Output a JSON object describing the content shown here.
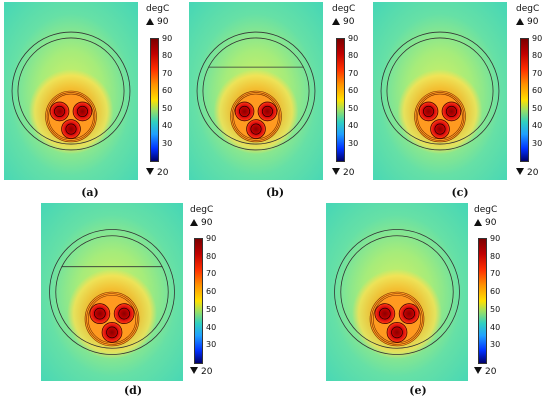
{
  "panels": [
    {
      "caption": "(a)",
      "unit": "degC",
      "max_label": "90",
      "min_label": "20",
      "ticks": [
        "90",
        "80",
        "70",
        "60",
        "50",
        "40",
        "30",
        "20"
      ],
      "has_cut_line": false
    },
    {
      "caption": "(b)",
      "unit": "degC",
      "max_label": "90",
      "min_label": "20",
      "ticks": [
        "90",
        "80",
        "70",
        "60",
        "50",
        "40",
        "30",
        "20"
      ],
      "has_cut_line": true
    },
    {
      "caption": "(c)",
      "unit": "degC",
      "max_label": "90",
      "min_label": "20",
      "ticks": [
        "90",
        "80",
        "70",
        "60",
        "50",
        "40",
        "30",
        "20"
      ],
      "has_cut_line": false
    },
    {
      "caption": "(d)",
      "unit": "degC",
      "max_label": "90",
      "min_label": "20",
      "ticks": [
        "90",
        "80",
        "70",
        "60",
        "50",
        "40",
        "30",
        "20"
      ],
      "has_cut_line": true
    },
    {
      "caption": "(e)",
      "unit": "degC",
      "max_label": "90",
      "min_label": "20",
      "ticks": [
        "90",
        "80",
        "70",
        "60",
        "50",
        "40",
        "30",
        "20"
      ],
      "has_cut_line": false
    }
  ],
  "colors": {
    "background_field": "#4fe0b0",
    "hot_core": "#c80000",
    "warm": "#ff8a00",
    "mid": "#f0e040"
  }
}
